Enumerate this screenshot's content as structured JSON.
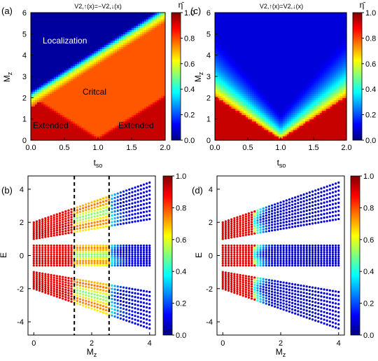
{
  "colormap": [
    "#00007f",
    "#0000ff",
    "#007fff",
    "#00ffff",
    "#7fff7f",
    "#ffff00",
    "#ff7f00",
    "#ff0000",
    "#7f0000"
  ],
  "chart_data": [
    {
      "panel_label": "(a)",
      "type": "heatmap",
      "title": "V2,↑(x)=−V2,↓(x)",
      "xlabel": "tso",
      "ylabel": "Mz",
      "xlim": [
        0,
        2
      ],
      "ylim": [
        0,
        6
      ],
      "xticks": [
        "0.0",
        "0.5",
        "1.0",
        "1.5",
        "2.0"
      ],
      "yticks": [
        "0",
        "1",
        "2",
        "3",
        "4",
        "5",
        "6"
      ],
      "colorbar": {
        "label": "η̄",
        "range": [
          0,
          1
        ],
        "ticks": [
          "0.0",
          "0.2",
          "0.4",
          "0.6",
          "0.8",
          "1.0"
        ]
      },
      "regions": [
        {
          "name": "Localization",
          "value": 0.05
        },
        {
          "name": "Critical",
          "value": 0.78
        },
        {
          "name": "Extended",
          "value": 0.95
        }
      ],
      "boundaries": {
        "extended_critical": "Mz = 2·|tso − 1|",
        "critical_localized": "Mz = 2·(tso + 1)"
      },
      "annotations": [
        "Localization",
        "Critcal",
        "Extended",
        "Extended"
      ]
    },
    {
      "panel_label": "(c)",
      "type": "heatmap",
      "title": "V2,↑(x)=V2,↓(x)",
      "xlabel": "tso",
      "ylabel": "Mz",
      "xlim": [
        0,
        2
      ],
      "ylim": [
        0,
        6
      ],
      "xticks": [
        "0.0",
        "0.5",
        "1.0",
        "1.5",
        "2.0"
      ],
      "yticks": [
        "0",
        "1",
        "2",
        "3",
        "4",
        "5",
        "6"
      ],
      "colorbar": {
        "label": "η̄",
        "range": [
          0,
          1
        ],
        "ticks": [
          "0.0",
          "0.2",
          "0.4",
          "0.6",
          "0.8",
          "1.0"
        ]
      },
      "boundaries": {
        "extended_localized": "Mz = 2·|tso − 1|"
      }
    },
    {
      "panel_label": "(b)",
      "type": "scatter",
      "xlabel": "Mz",
      "ylabel": "E",
      "xlim": [
        -0.2,
        4.2
      ],
      "ylim": [
        -4.8,
        4.8
      ],
      "xticks": [
        "0",
        "2",
        "4"
      ],
      "yticks": [
        "-4",
        "-2",
        "0",
        "2",
        "4"
      ],
      "colorbar": {
        "range": [
          0,
          1
        ],
        "ticks": [
          "0.0",
          "0.2",
          "0.4",
          "0.6",
          "0.8",
          "1.0"
        ]
      },
      "vertical_lines": [
        1.4,
        2.6
      ],
      "bands": [
        {
          "name": "upper",
          "E_at_Mz0": [
            1.0,
            2.0
          ],
          "E_at_Mz4": [
            2.2,
            4.4
          ]
        },
        {
          "name": "middle",
          "E_at_Mz0": [
            -0.6,
            0.6
          ],
          "E_at_Mz4": [
            -0.6,
            0.6
          ]
        },
        {
          "name": "lower",
          "E_at_Mz0": [
            -2.0,
            -1.0
          ],
          "E_at_Mz4": [
            -4.4,
            -2.2
          ]
        }
      ],
      "Mz_range": [
        0,
        4
      ]
    },
    {
      "panel_label": "(d)",
      "type": "scatter",
      "xlabel": "Mz",
      "ylabel": "E",
      "xlim": [
        -0.2,
        4.2
      ],
      "ylim": [
        -4.8,
        4.8
      ],
      "xticks": [
        "0",
        "2",
        "4"
      ],
      "yticks": [
        "-4",
        "-2",
        "0",
        "2",
        "4"
      ],
      "colorbar": {
        "range": [
          0,
          1
        ],
        "ticks": [
          "0.0",
          "0.2",
          "0.4",
          "0.6",
          "0.8",
          "1.0"
        ]
      },
      "bands": [
        {
          "name": "upper",
          "E_at_Mz0": [
            1.0,
            2.0
          ],
          "E_at_Mz4": [
            2.2,
            4.4
          ]
        },
        {
          "name": "middle",
          "E_at_Mz0": [
            -0.6,
            0.6
          ],
          "E_at_Mz4": [
            -0.6,
            0.6
          ]
        },
        {
          "name": "lower",
          "E_at_Mz0": [
            -2.0,
            -1.0
          ],
          "E_at_Mz4": [
            -4.4,
            -2.2
          ]
        }
      ],
      "Mz_range": [
        0,
        4
      ]
    }
  ]
}
